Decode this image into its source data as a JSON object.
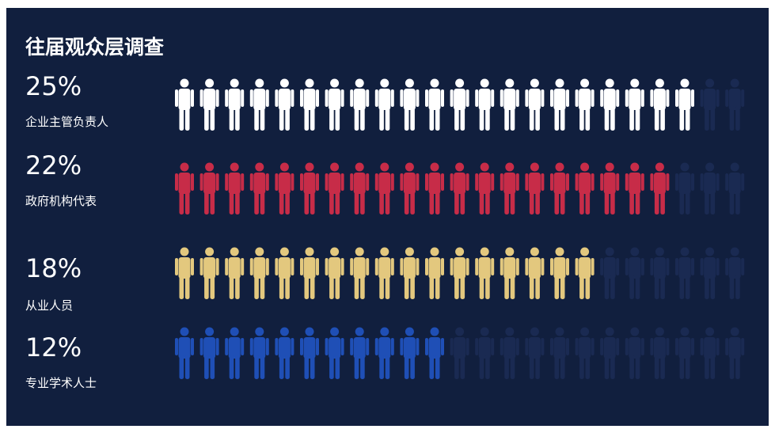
{
  "title": "往届观众层调查",
  "chart_data": {
    "type": "pictograph",
    "title": "往届观众层调查",
    "total_icons": 23,
    "categories": [
      "企业主管负责人",
      "政府机构代表",
      "从业人员",
      "专业学术人士"
    ],
    "percent_labels": [
      "25%",
      "22%",
      "18%",
      "12%"
    ],
    "filled_icons": [
      21,
      20,
      17,
      11
    ],
    "colors": [
      "#ffffff",
      "#c72c48",
      "#e3c87e",
      "#1f4fb6"
    ],
    "empty_color": "#1a2a52"
  }
}
